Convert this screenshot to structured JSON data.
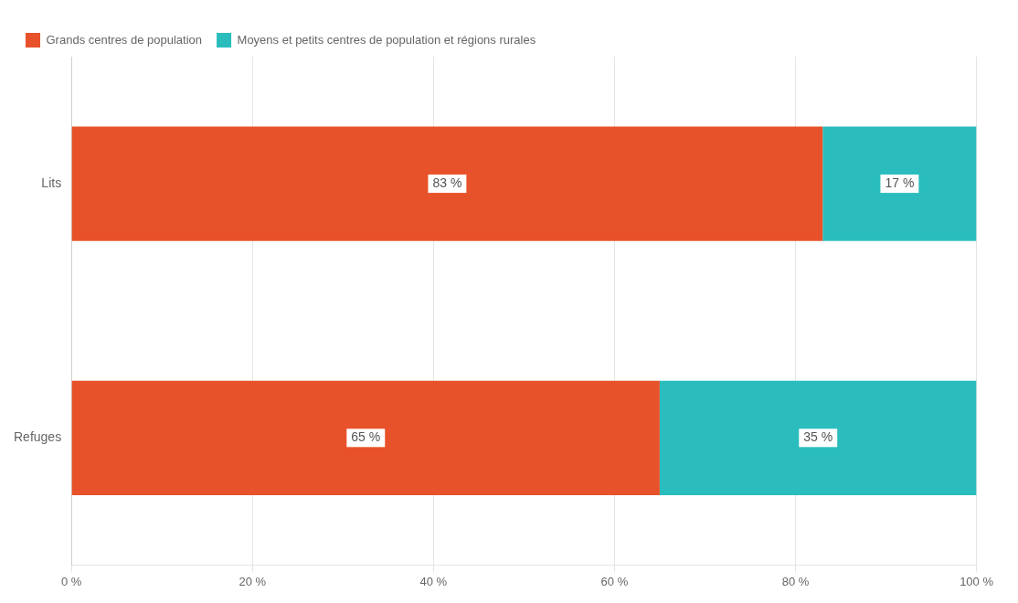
{
  "chart_data": {
    "type": "bar",
    "orientation": "horizontal",
    "stacked": true,
    "categories": [
      "Lits",
      "Refuges"
    ],
    "series": [
      {
        "name": "Grands centres de population",
        "color": "#E8522A",
        "values": [
          83,
          65
        ],
        "value_labels": [
          "83 %",
          "65 %"
        ]
      },
      {
        "name": "Moyens et petits centres de population et régions rurales",
        "color": "#2BBDBD",
        "values": [
          17,
          35
        ],
        "value_labels": [
          "17 %",
          "35 %"
        ]
      }
    ],
    "xlim": [
      0,
      100
    ],
    "xticks": [
      {
        "value": 0,
        "label": "0 %"
      },
      {
        "value": 20,
        "label": "20 %"
      },
      {
        "value": 40,
        "label": "40 %"
      },
      {
        "value": 60,
        "label": "60 %"
      },
      {
        "value": 80,
        "label": "80 %"
      },
      {
        "value": 100,
        "label": "100 %"
      }
    ],
    "grid": true,
    "legend": "upper left",
    "data_labels": true
  }
}
